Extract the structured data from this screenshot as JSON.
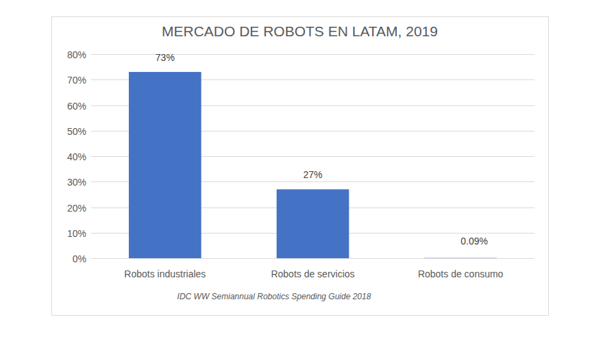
{
  "chart_data": {
    "type": "bar",
    "title": "MERCADO DE ROBOTS EN LATAM, 2019",
    "categories": [
      "Robots industriales",
      "Robots de servicios",
      "Robots de consumo"
    ],
    "values": [
      73,
      27,
      0.09
    ],
    "value_labels": [
      "73%",
      "27%",
      "0.09%"
    ],
    "color": "#4472c4",
    "ylim": [
      0,
      80
    ],
    "yticks": [
      {
        "value": 0,
        "label": "0%"
      },
      {
        "value": 10,
        "label": "10%"
      },
      {
        "value": 20,
        "label": "20%"
      },
      {
        "value": 30,
        "label": "30%"
      },
      {
        "value": 40,
        "label": "40%"
      },
      {
        "value": 50,
        "label": "50%"
      },
      {
        "value": 60,
        "label": "60%"
      },
      {
        "value": 70,
        "label": "70%"
      },
      {
        "value": 80,
        "label": "80%"
      }
    ],
    "grid": true,
    "data_labels": true,
    "source": "IDC WW Semiannual Robotics Spending Guide 2018"
  }
}
